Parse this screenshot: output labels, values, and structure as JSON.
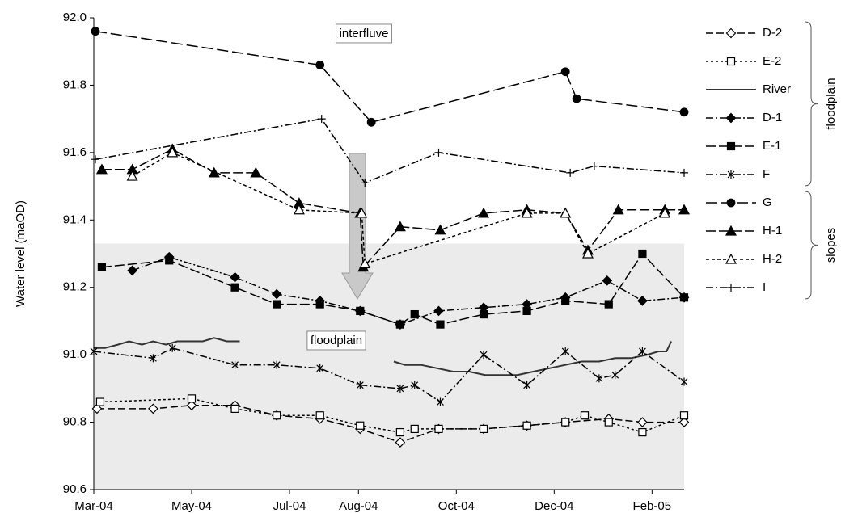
{
  "chart_data": {
    "type": "line",
    "y_label": "Water level (maOD)",
    "ylim": [
      90.6,
      92.0
    ],
    "yticks": [
      {
        "value": 90.6,
        "label": "90.6"
      },
      {
        "value": 90.8,
        "label": "90.8"
      },
      {
        "value": 91.0,
        "label": "91.0"
      },
      {
        "value": 91.2,
        "label": "91.2"
      },
      {
        "value": 91.4,
        "label": "91.4"
      },
      {
        "value": 91.6,
        "label": "91.6"
      },
      {
        "value": 91.8,
        "label": "91.8"
      },
      {
        "value": 92.0,
        "label": "92.0"
      }
    ],
    "xlim": [
      38047,
      38415
    ],
    "xticks": [
      {
        "value": 38047,
        "label": "Mar-04"
      },
      {
        "value": 38108,
        "label": "May-04"
      },
      {
        "value": 38169,
        "label": "Jul-04"
      },
      {
        "value": 38212,
        "label": "Aug-04"
      },
      {
        "value": 38273,
        "label": "Oct-04"
      },
      {
        "value": 38334,
        "label": "Dec-04"
      },
      {
        "value": 38395,
        "label": "Feb-05"
      }
    ],
    "shaded_range": [
      90.6,
      91.33
    ],
    "annotations": [
      "interfluve",
      "floodplain"
    ],
    "legend_groups": [
      {
        "label": "floodplain",
        "series": [
          "D-2",
          "E-2",
          "River",
          "D-1",
          "E-1",
          "F"
        ]
      },
      {
        "label": "slopes",
        "series": [
          "G",
          "H-1",
          "H-2",
          "I"
        ]
      }
    ],
    "series": [
      {
        "name": "D-2",
        "color": "#000000",
        "dash": "9,4",
        "marker": "diamond",
        "filled": false,
        "x": [
          38049,
          38084,
          38108,
          38135,
          38161,
          38188,
          38213,
          38238,
          38262,
          38290,
          38317,
          38341,
          38368,
          38389,
          38415
        ],
        "values": [
          90.84,
          90.84,
          90.85,
          90.85,
          90.82,
          90.81,
          90.78,
          90.74,
          90.78,
          90.78,
          90.79,
          90.8,
          90.81,
          90.8,
          90.8
        ]
      },
      {
        "name": "E-2",
        "color": "#000000",
        "dash": "3,3",
        "marker": "square",
        "filled": false,
        "x": [
          38051,
          38108,
          38135,
          38161,
          38188,
          38213,
          38238,
          38247,
          38262,
          38290,
          38317,
          38341,
          38353,
          38368,
          38389,
          38415
        ],
        "values": [
          90.86,
          90.87,
          90.84,
          90.82,
          90.82,
          90.79,
          90.77,
          90.78,
          90.78,
          90.78,
          90.79,
          90.8,
          90.82,
          90.8,
          90.77,
          90.82
        ]
      },
      {
        "name": "River",
        "color": "#333333",
        "dash": "none",
        "marker": "none",
        "filled": false,
        "x": [
          38047,
          38054,
          38062,
          38069,
          38077,
          38084,
          38092,
          38099,
          38107,
          38115,
          38122,
          38130,
          38138,
          38186,
          38234,
          38241,
          38251,
          38261,
          38271,
          38281,
          38291,
          38301,
          38311,
          38321,
          38331,
          38341,
          38351,
          38362,
          38372,
          38382,
          38392,
          38399,
          38404,
          38407
        ],
        "values": [
          91.02,
          91.02,
          91.03,
          91.04,
          91.03,
          91.04,
          91.03,
          91.04,
          91.04,
          91.04,
          91.05,
          91.04,
          91.04,
          null,
          90.98,
          90.97,
          90.97,
          90.96,
          90.95,
          90.95,
          90.94,
          90.94,
          90.94,
          90.95,
          90.96,
          90.97,
          90.98,
          90.98,
          90.99,
          90.99,
          91.0,
          91.01,
          91.01,
          91.04
        ]
      },
      {
        "name": "D-1",
        "color": "#000000",
        "dash": "9,3,2,3",
        "marker": "diamond",
        "filled": true,
        "x": [
          38071,
          38094,
          38135,
          38161,
          38188,
          38213,
          38238,
          38262,
          38290,
          38317,
          38341,
          38367,
          38389,
          38415
        ],
        "values": [
          91.25,
          91.29,
          91.23,
          91.18,
          91.16,
          91.13,
          91.09,
          91.13,
          91.14,
          91.15,
          91.17,
          91.22,
          91.16,
          91.17
        ]
      },
      {
        "name": "E-1",
        "color": "#000000",
        "dash": "12,4",
        "marker": "square",
        "filled": true,
        "x": [
          38052,
          38094,
          38135,
          38161,
          38188,
          38213,
          38238,
          38247,
          38263,
          38290,
          38317,
          38341,
          38368,
          38389,
          38415
        ],
        "values": [
          91.26,
          91.28,
          91.2,
          91.15,
          91.15,
          91.13,
          91.09,
          91.12,
          91.09,
          91.12,
          91.13,
          91.16,
          91.15,
          91.3,
          91.17
        ]
      },
      {
        "name": "F",
        "color": "#000000",
        "dash": "9,3,2,3",
        "marker": "asterisk",
        "filled": false,
        "x": [
          38047,
          38084,
          38096,
          38135,
          38161,
          38188,
          38213,
          38238,
          38247,
          38263,
          38290,
          38317,
          38341,
          38362,
          38372,
          38389,
          38415
        ],
        "values": [
          91.01,
          90.99,
          91.02,
          90.97,
          90.97,
          90.96,
          90.91,
          90.9,
          90.91,
          90.86,
          91.0,
          90.91,
          91.01,
          90.93,
          90.94,
          91.01,
          90.92
        ]
      },
      {
        "name": "G",
        "color": "#000000",
        "dash": "14,5",
        "marker": "circle",
        "filled": true,
        "x": [
          38048,
          38188,
          38220,
          38341,
          38348,
          38415
        ],
        "values": [
          91.96,
          91.86,
          91.69,
          91.84,
          91.76,
          91.72
        ]
      },
      {
        "name": "H-1",
        "color": "#000000",
        "dash": "12,4",
        "marker": "triangle",
        "filled": true,
        "x": [
          38052,
          38071,
          38096,
          38122,
          38148,
          38175,
          38213,
          38215,
          38238,
          38263,
          38290,
          38317,
          38341,
          38355,
          38374,
          38403,
          38415
        ],
        "values": [
          91.55,
          91.55,
          91.61,
          91.54,
          91.54,
          91.45,
          91.42,
          91.26,
          91.38,
          91.37,
          91.42,
          91.43,
          91.42,
          91.31,
          91.43,
          91.43,
          91.43
        ]
      },
      {
        "name": "H-2",
        "color": "#000000",
        "dash": "4,3",
        "marker": "triangle",
        "filled": false,
        "x": [
          38071,
          38096,
          38175,
          38214,
          38216,
          38317,
          38341,
          38355,
          38403
        ],
        "values": [
          91.53,
          91.6,
          91.43,
          91.42,
          91.27,
          91.42,
          91.42,
          91.3,
          91.42
        ]
      },
      {
        "name": "I",
        "color": "#000000",
        "dash": "9,3,2,3",
        "marker": "plus",
        "filled": false,
        "x": [
          38048,
          38189,
          38216,
          38262,
          38344,
          38359,
          38415
        ],
        "values": [
          91.58,
          91.7,
          91.51,
          91.6,
          91.54,
          91.56,
          91.54
        ]
      }
    ]
  }
}
